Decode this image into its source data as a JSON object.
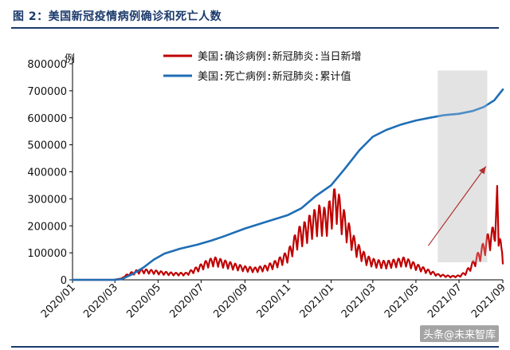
{
  "figure": {
    "title": "图 2：美国新冠疫情病例确诊和死亡人数",
    "watermark": "头条@未来智库"
  },
  "colors": {
    "title": "#1b3a6b",
    "cases": "#c00000",
    "deaths": "#1f6eb5",
    "highlight": "#d0d0d0",
    "arrow": "#b03030"
  },
  "chart_data": {
    "type": "line",
    "ylabel": "例",
    "ylim": [
      0,
      800000
    ],
    "yticks": [
      0,
      100000,
      200000,
      300000,
      400000,
      500000,
      600000,
      700000,
      800000
    ],
    "ytick_labels": [
      "0",
      "100000",
      "200000",
      "300000",
      "400000",
      "500000",
      "600000",
      "700000",
      "800000"
    ],
    "xlim": [
      "2020-01-01",
      "2021-09-01"
    ],
    "xticks": [
      "2020-01-01",
      "2020-03-01",
      "2020-05-01",
      "2020-07-01",
      "2020-09-01",
      "2020-11-01",
      "2021-01-01",
      "2021-03-01",
      "2021-05-01",
      "2021-07-01",
      "2021-09-01"
    ],
    "xtick_labels": [
      "2020/01",
      "2020/03",
      "2020/05",
      "2020/07",
      "2020/09",
      "2020/11",
      "2021/01",
      "2021/03",
      "2021/05",
      "2021/07",
      "2021/09"
    ],
    "legend_position": "top-center",
    "grid": false,
    "highlight_region": {
      "x": [
        "2021-06-01",
        "2021-08-10"
      ],
      "y": [
        65000,
        775000
      ]
    },
    "annotation_arrow": {
      "from": [
        "2021-06-01",
        150000
      ],
      "to": [
        "2021-08-08",
        420000
      ]
    },
    "series": [
      {
        "name": "美国:确诊病例:新冠肺炎:当日新增",
        "color": "#c00000",
        "points": [
          [
            "2020-01-01",
            0
          ],
          [
            "2020-02-28",
            0
          ],
          [
            "2020-03-10",
            5000
          ],
          [
            "2020-03-20",
            20000
          ],
          [
            "2020-04-01",
            30000
          ],
          [
            "2020-04-10",
            33000
          ],
          [
            "2020-04-25",
            30000
          ],
          [
            "2020-05-10",
            25000
          ],
          [
            "2020-05-25",
            22000
          ],
          [
            "2020-06-10",
            22000
          ],
          [
            "2020-06-25",
            40000
          ],
          [
            "2020-07-10",
            62000
          ],
          [
            "2020-07-20",
            70000
          ],
          [
            "2020-08-01",
            62000
          ],
          [
            "2020-08-15",
            52000
          ],
          [
            "2020-09-01",
            42000
          ],
          [
            "2020-09-15",
            38000
          ],
          [
            "2020-10-01",
            45000
          ],
          [
            "2020-10-15",
            60000
          ],
          [
            "2020-11-01",
            90000
          ],
          [
            "2020-11-15",
            160000
          ],
          [
            "2020-11-25",
            180000
          ],
          [
            "2020-12-05",
            210000
          ],
          [
            "2020-12-15",
            230000
          ],
          [
            "2020-12-25",
            220000
          ],
          [
            "2021-01-08",
            295000
          ],
          [
            "2021-01-15",
            240000
          ],
          [
            "2021-01-25",
            180000
          ],
          [
            "2021-02-05",
            120000
          ],
          [
            "2021-02-20",
            75000
          ],
          [
            "2021-03-05",
            62000
          ],
          [
            "2021-03-20",
            58000
          ],
          [
            "2021-04-05",
            65000
          ],
          [
            "2021-04-15",
            70000
          ],
          [
            "2021-05-01",
            50000
          ],
          [
            "2021-05-15",
            35000
          ],
          [
            "2021-06-01",
            18000
          ],
          [
            "2021-06-20",
            12000
          ],
          [
            "2021-07-01",
            14000
          ],
          [
            "2021-07-10",
            25000
          ],
          [
            "2021-07-20",
            55000
          ],
          [
            "2021-08-01",
            100000
          ],
          [
            "2021-08-10",
            140000
          ],
          [
            "2021-08-20",
            170000
          ],
          [
            "2021-08-24",
            290000
          ],
          [
            "2021-08-26",
            120000
          ],
          [
            "2021-08-28",
            210000
          ],
          [
            "2021-08-30",
            110000
          ],
          [
            "2021-09-01",
            60000
          ]
        ]
      },
      {
        "name": "美国:死亡病例:新冠肺炎:累计值",
        "color": "#1f6eb5",
        "points": [
          [
            "2020-01-01",
            0
          ],
          [
            "2020-02-28",
            0
          ],
          [
            "2020-03-10",
            2000
          ],
          [
            "2020-03-25",
            20000
          ],
          [
            "2020-04-10",
            45000
          ],
          [
            "2020-04-25",
            75000
          ],
          [
            "2020-05-10",
            97000
          ],
          [
            "2020-06-01",
            115000
          ],
          [
            "2020-06-25",
            130000
          ],
          [
            "2020-07-15",
            145000
          ],
          [
            "2020-08-01",
            160000
          ],
          [
            "2020-09-01",
            190000
          ],
          [
            "2020-10-01",
            215000
          ],
          [
            "2020-11-01",
            240000
          ],
          [
            "2020-11-20",
            265000
          ],
          [
            "2020-12-10",
            310000
          ],
          [
            "2021-01-01",
            350000
          ],
          [
            "2021-01-20",
            410000
          ],
          [
            "2021-02-10",
            480000
          ],
          [
            "2021-03-01",
            530000
          ],
          [
            "2021-03-20",
            555000
          ],
          [
            "2021-04-10",
            575000
          ],
          [
            "2021-05-01",
            590000
          ],
          [
            "2021-05-20",
            600000
          ],
          [
            "2021-06-10",
            610000
          ],
          [
            "2021-07-01",
            615000
          ],
          [
            "2021-07-20",
            625000
          ],
          [
            "2021-08-05",
            640000
          ],
          [
            "2021-08-20",
            665000
          ],
          [
            "2021-09-01",
            705000
          ]
        ]
      }
    ]
  }
}
